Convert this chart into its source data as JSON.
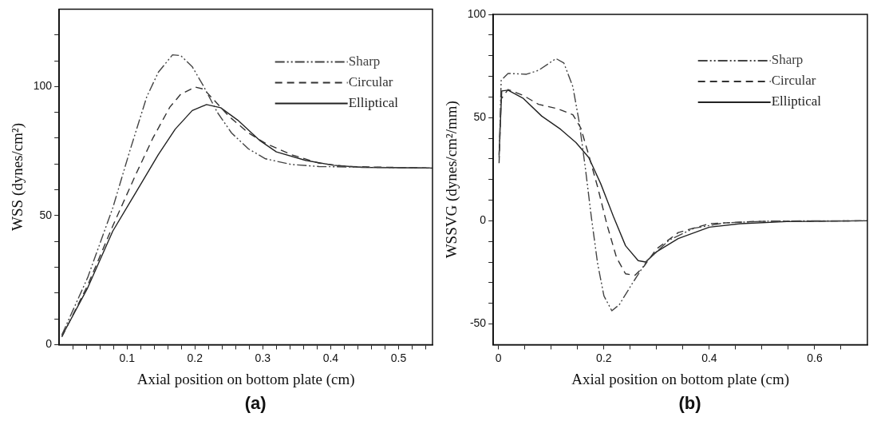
{
  "chart_data": [
    {
      "type": "line",
      "xlabel": "Axial position on bottom plate (cm)",
      "ylabel": "WSS (dynes/cm²)",
      "annotations": [
        "(a)"
      ],
      "legend": "top right",
      "marker": "none",
      "grid": false,
      "xlim": [
        0,
        0.55
      ],
      "ylim": [
        0,
        130
      ],
      "xticks": [
        {
          "value": 0.02,
          "label": null
        },
        {
          "value": 0.04,
          "label": null
        },
        {
          "value": 0.06,
          "label": null
        },
        {
          "value": 0.08,
          "label": null
        },
        0.1,
        {
          "value": 0.12,
          "label": null
        },
        {
          "value": 0.14,
          "label": null
        },
        {
          "value": 0.16,
          "label": null
        },
        {
          "value": 0.18,
          "label": null
        },
        0.2,
        {
          "value": 0.22,
          "label": null
        },
        {
          "value": 0.24,
          "label": null
        },
        {
          "value": 0.26,
          "label": null
        },
        {
          "value": 0.28,
          "label": null
        },
        0.3,
        {
          "value": 0.32,
          "label": null
        },
        {
          "value": 0.34,
          "label": null
        },
        {
          "value": 0.36,
          "label": null
        },
        {
          "value": 0.38,
          "label": null
        },
        0.4,
        {
          "value": 0.42,
          "label": null
        },
        {
          "value": 0.44,
          "label": null
        },
        {
          "value": 0.46,
          "label": null
        },
        {
          "value": 0.48,
          "label": null
        },
        0.5,
        {
          "value": 0.52,
          "label": null
        },
        {
          "value": 0.54,
          "label": null
        }
      ],
      "yticks": [
        0,
        {
          "value": 10,
          "label": null
        },
        {
          "value": 20,
          "label": null
        },
        {
          "value": 30,
          "label": null
        },
        {
          "value": 40,
          "label": null
        },
        50,
        {
          "value": 60,
          "label": null
        },
        {
          "value": 70,
          "label": null
        },
        {
          "value": 80,
          "label": null
        },
        {
          "value": 90,
          "label": null
        },
        100,
        {
          "value": 110,
          "label": null
        },
        {
          "value": 120,
          "label": null
        }
      ],
      "series": [
        {
          "name": "Sharp",
          "color": "#444444",
          "line_style": "dashdot",
          "x": [
            0.004,
            0.042,
            0.079,
            0.104,
            0.129,
            0.146,
            0.167,
            0.179,
            0.196,
            0.213,
            0.233,
            0.254,
            0.279,
            0.304,
            0.342,
            0.383,
            0.55
          ],
          "values": [
            3.8,
            26,
            53,
            75,
            96,
            105.5,
            112.3,
            112,
            107.7,
            100,
            90,
            82,
            75.8,
            72,
            69.8,
            69,
            68.4
          ]
        },
        {
          "name": "Circular",
          "color": "#333333",
          "line_style": "dashed",
          "x": [
            0.004,
            0.042,
            0.079,
            0.113,
            0.138,
            0.163,
            0.179,
            0.2,
            0.213,
            0.229,
            0.25,
            0.279,
            0.304,
            0.342,
            0.383,
            0.425,
            0.55
          ],
          "values": [
            3,
            23,
            46,
            66,
            80,
            92,
            97,
            99.8,
            99,
            94.5,
            88.5,
            82,
            78,
            73.6,
            70.3,
            69,
            68.4
          ]
        },
        {
          "name": "Elliptical",
          "color": "#222222",
          "line_style": "solid",
          "x": [
            0.004,
            0.042,
            0.079,
            0.113,
            0.146,
            0.171,
            0.196,
            0.217,
            0.238,
            0.263,
            0.296,
            0.32,
            0.363,
            0.404,
            0.446,
            0.55
          ],
          "values": [
            3.3,
            22,
            44,
            59,
            73.6,
            83.5,
            90.7,
            93,
            91.8,
            87,
            79,
            74.7,
            71.4,
            69.5,
            68.7,
            68.4
          ]
        }
      ]
    },
    {
      "type": "line",
      "xlabel": "Axial position on bottom plate (cm)",
      "ylabel": "WSSVG (dynes/cm²/mm)",
      "annotations": [
        "(b)"
      ],
      "legend": "top right",
      "marker": "none",
      "grid": false,
      "xlim": [
        -0.01,
        0.7
      ],
      "ylim": [
        -60,
        100
      ],
      "xticks": [
        0,
        {
          "value": 0.05,
          "label": null
        },
        {
          "value": 0.1,
          "label": null
        },
        {
          "value": 0.15,
          "label": null
        },
        0.2,
        {
          "value": 0.25,
          "label": null
        },
        {
          "value": 0.3,
          "label": null
        },
        {
          "value": 0.35,
          "label": null
        },
        0.4,
        {
          "value": 0.45,
          "label": null
        },
        {
          "value": 0.5,
          "label": null
        },
        {
          "value": 0.55,
          "label": null
        },
        0.6,
        {
          "value": 0.65,
          "label": null
        }
      ],
      "yticks": [
        -50,
        {
          "value": -40,
          "label": null
        },
        {
          "value": -30,
          "label": null
        },
        {
          "value": -20,
          "label": null
        },
        {
          "value": -10,
          "label": null
        },
        0,
        {
          "value": 10,
          "label": null
        },
        {
          "value": 20,
          "label": null
        },
        {
          "value": 30,
          "label": null
        },
        {
          "value": 40,
          "label": null
        },
        50,
        {
          "value": 60,
          "label": null
        },
        {
          "value": 70,
          "label": null
        },
        {
          "value": 80,
          "label": null
        },
        {
          "value": 90,
          "label": null
        },
        100
      ],
      "series": [
        {
          "name": "Sharp",
          "color": "#444444",
          "line_style": "dashdot",
          "x": [
            0.001,
            0.005,
            0.018,
            0.053,
            0.076,
            0.109,
            0.124,
            0.141,
            0.153,
            0.165,
            0.176,
            0.188,
            0.2,
            0.215,
            0.229,
            0.253,
            0.282,
            0.324,
            0.371,
            0.429,
            0.518,
            0.7
          ],
          "values": [
            30.7,
            68,
            71.4,
            71,
            72.9,
            78.6,
            76.4,
            65,
            47.9,
            25,
            2,
            -20.7,
            -36.4,
            -43.6,
            -40.7,
            -30.7,
            -19.3,
            -9.3,
            -3.6,
            -1,
            -0.1,
            0
          ]
        },
        {
          "name": "Circular",
          "color": "#333333",
          "line_style": "dashed",
          "x": [
            0.001,
            0.005,
            0.018,
            0.047,
            0.076,
            0.112,
            0.141,
            0.156,
            0.171,
            0.188,
            0.206,
            0.224,
            0.241,
            0.259,
            0.276,
            0.3,
            0.341,
            0.4,
            0.488,
            0.7
          ],
          "values": [
            27.9,
            59,
            63.6,
            60.7,
            56.4,
            54.3,
            51.4,
            45,
            32,
            16.4,
            -2.1,
            -17.9,
            -25.7,
            -26.4,
            -22,
            -13.6,
            -5.7,
            -1.4,
            -0.3,
            0
          ]
        },
        {
          "name": "Elliptical",
          "color": "#222222",
          "line_style": "solid",
          "x": [
            0.001,
            0.006,
            0.018,
            0.047,
            0.082,
            0.118,
            0.147,
            0.171,
            0.194,
            0.218,
            0.241,
            0.265,
            0.279,
            0.3,
            0.341,
            0.4,
            0.459,
            0.547,
            0.7
          ],
          "values": [
            32,
            62.9,
            63.3,
            59.3,
            50.7,
            44.3,
            37.9,
            30.7,
            17.9,
            2.1,
            -12.1,
            -19.3,
            -20,
            -15,
            -8.6,
            -3.1,
            -1.4,
            -0.4,
            0
          ]
        }
      ]
    }
  ]
}
